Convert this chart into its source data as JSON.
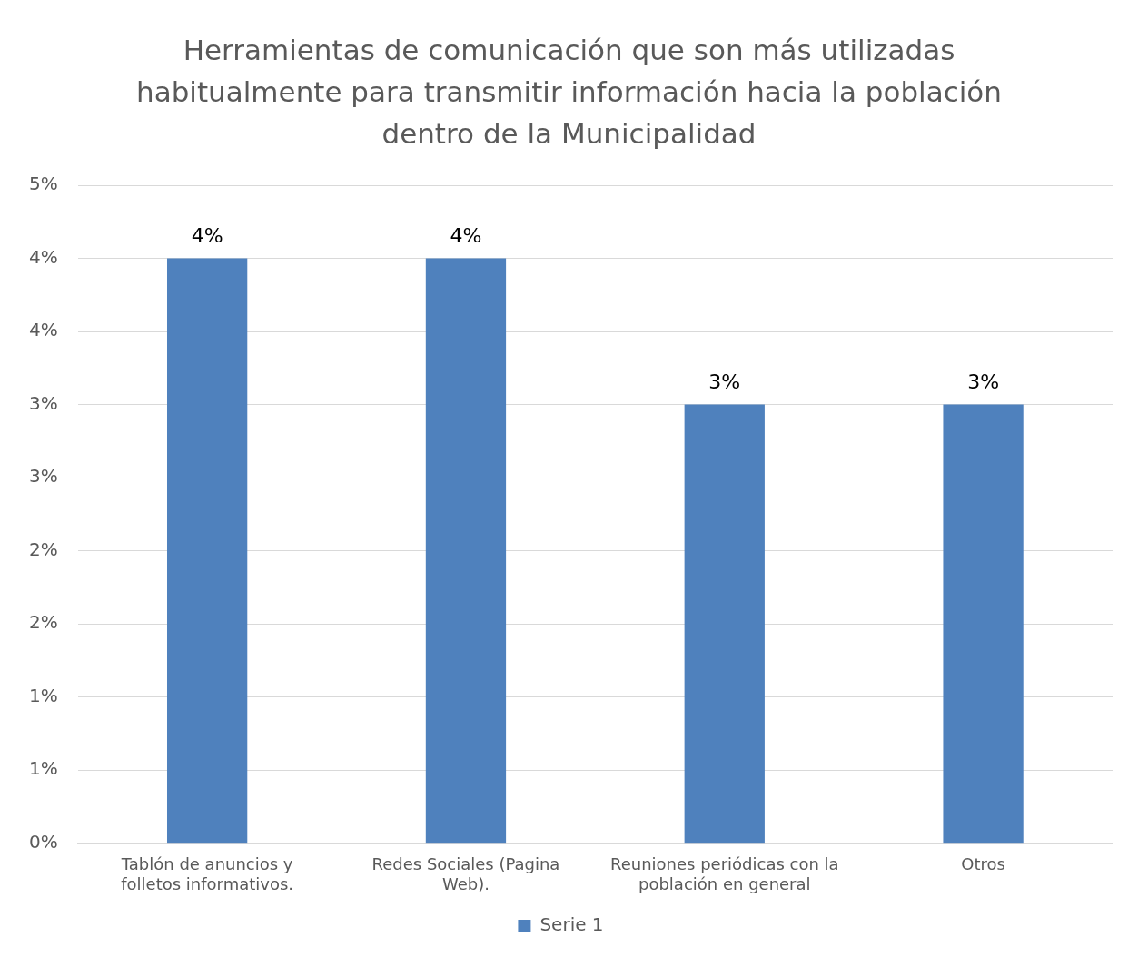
{
  "chart_data": {
    "type": "bar",
    "title": "Herramientas de comunicación que son más utilizadas habitualmente para transmitir información hacia la población dentro de la Municipalidad",
    "categories": [
      "Tablón de anuncios y folletos informativos.",
      "Redes Sociales (Pagina Web).",
      "Reuniones periódicas con la población en general",
      "Otros"
    ],
    "series": [
      {
        "name": "Serie 1",
        "color": "#4f81bd",
        "values": [
          4,
          4,
          3,
          3
        ],
        "value_labels": [
          "4%",
          "4%",
          "3%",
          "3%"
        ]
      }
    ],
    "ylim": [
      0,
      4.5
    ],
    "yticks": [
      {
        "value": 0,
        "label": "0%"
      },
      {
        "value": 0.5,
        "label": "1%"
      },
      {
        "value": 1,
        "label": "1%"
      },
      {
        "value": 1.5,
        "label": "2%"
      },
      {
        "value": 2,
        "label": "2%"
      },
      {
        "value": 2.5,
        "label": "3%"
      },
      {
        "value": 3,
        "label": "3%"
      },
      {
        "value": 3.5,
        "label": "4%"
      },
      {
        "value": 4,
        "label": "4%"
      },
      {
        "value": 4.5,
        "label": "5%"
      }
    ],
    "grid": "y",
    "legend": "bottom"
  }
}
